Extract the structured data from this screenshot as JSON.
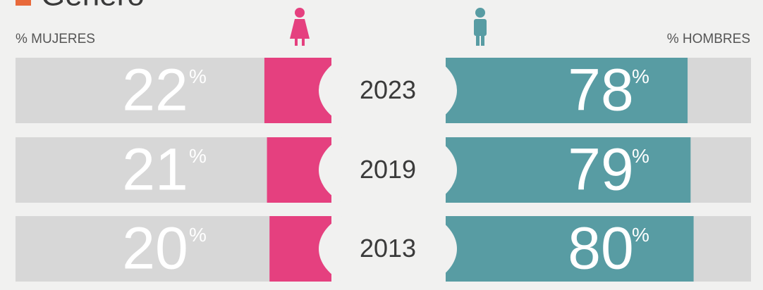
{
  "chart_data": {
    "type": "butterfly",
    "title": "Género",
    "categories": [
      "2023",
      "2019",
      "2013"
    ],
    "unit": "%",
    "series": [
      {
        "name": "% MUJERES",
        "color": "#e5407f",
        "values": [
          22,
          21,
          20
        ]
      },
      {
        "name": "% HOMBRES",
        "color": "#589ca3",
        "values": [
          78,
          79,
          80
        ]
      }
    ],
    "xlim": [
      0,
      100
    ]
  }
}
